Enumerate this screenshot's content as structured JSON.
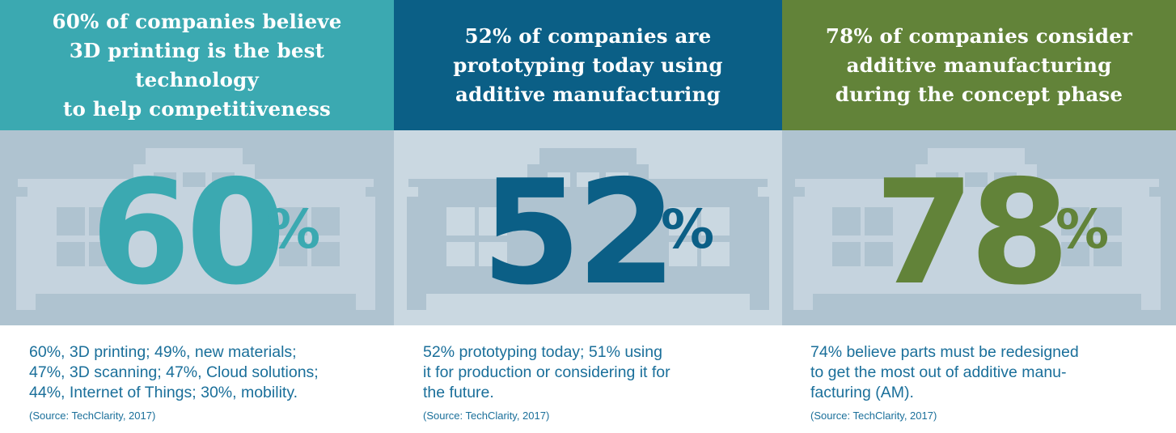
{
  "colors": {
    "teal": "#3ba9b1",
    "navy": "#0b5f86",
    "green": "#628339",
    "band_dark": "#afc3d0",
    "band_light": "#cad8e1",
    "text_blue": "#1a6f9a"
  },
  "panels": [
    {
      "headline": "60% of companies believe\n3D printing is the best technology\nto help competitiveness",
      "big_number": "60",
      "percent_sign": "%",
      "value_percent": 60,
      "body": "60%, 3D printing; 49%, new materials;\n47%, 3D scanning; 47%, Cloud solutions;\n44%, Internet of Things; 30%, mobility.",
      "source": "(Source: TechClarity, 2017)",
      "icon": "factory-building-icon"
    },
    {
      "headline": "52% of companies are\nprototyping today using\nadditive manufacturing",
      "big_number": "52",
      "percent_sign": "%",
      "value_percent": 52,
      "body": "52% prototyping today; 51% using\nit for production or considering it for\nthe future.",
      "source": "(Source: TechClarity, 2017)",
      "icon": "factory-building-icon"
    },
    {
      "headline": "78% of companies consider\nadditive manufacturing\nduring the concept phase",
      "big_number": "78",
      "percent_sign": "%",
      "value_percent": 78,
      "body": "74% believe parts must be redesigned\nto get the most out of additive manu-\nfacturing (AM).",
      "source": "(Source: TechClarity, 2017)",
      "icon": "factory-building-icon"
    }
  ]
}
